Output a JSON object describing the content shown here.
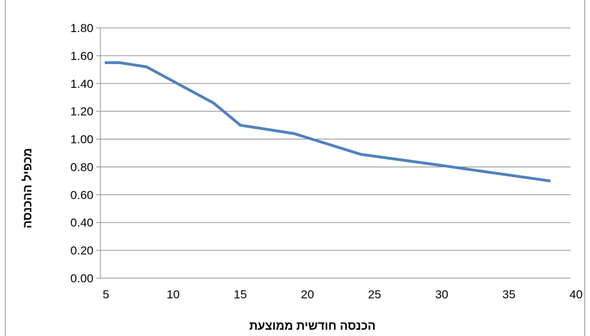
{
  "chart_data": {
    "type": "line",
    "title": "",
    "xlabel": "הכנסה חודשית ממוצעת",
    "ylabel": "מכפיל ההכנסה",
    "xlim": [
      5,
      40
    ],
    "ylim": [
      0,
      1.8
    ],
    "x_ticks": [
      "5",
      "10",
      "15",
      "20",
      "25",
      "30",
      "35",
      "40"
    ],
    "y_ticks": [
      "0.00",
      "0.20",
      "0.40",
      "0.60",
      "0.80",
      "1.00",
      "1.20",
      "1.40",
      "1.60",
      "1.80"
    ],
    "grid": true,
    "legend": "none",
    "series": [
      {
        "color": "#4f81bd",
        "points": [
          {
            "x": 5,
            "y": 1.55
          },
          {
            "x": 6,
            "y": 1.55
          },
          {
            "x": 8,
            "y": 1.52
          },
          {
            "x": 13,
            "y": 1.26
          },
          {
            "x": 15,
            "y": 1.1
          },
          {
            "x": 19,
            "y": 1.04
          },
          {
            "x": 24,
            "y": 0.89
          },
          {
            "x": 30,
            "y": 0.81
          },
          {
            "x": 38,
            "y": 0.7
          }
        ]
      }
    ]
  }
}
